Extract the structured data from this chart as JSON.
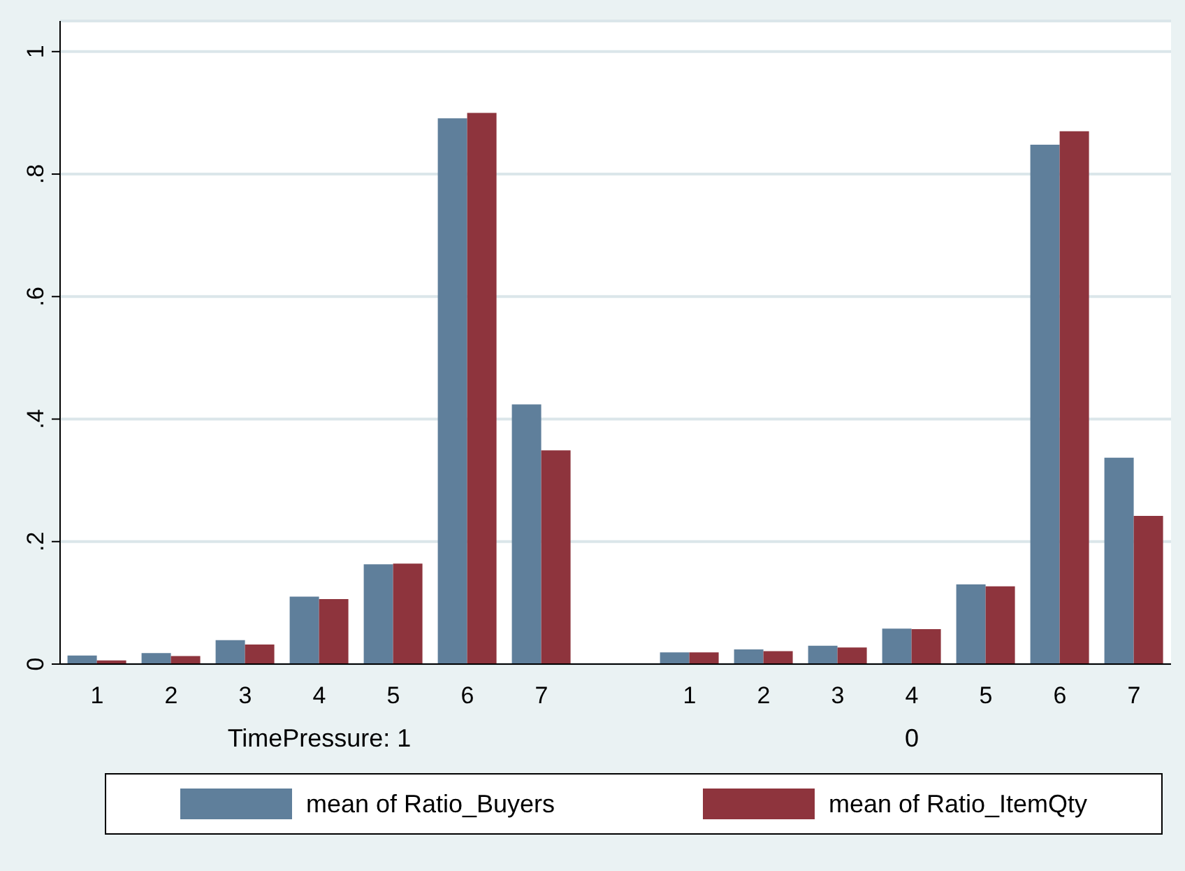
{
  "chart_data": {
    "type": "bar",
    "categories": [
      "1",
      "2",
      "3",
      "4",
      "5",
      "6",
      "7",
      null,
      "1",
      "2",
      "3",
      "4",
      "5",
      "6",
      "7"
    ],
    "series": [
      {
        "name": "mean of Ratio_Buyers",
        "color": "#5f7f9b",
        "values": [
          0.014,
          0.018,
          0.039,
          0.11,
          0.163,
          0.891,
          0.424,
          null,
          0.019,
          0.024,
          0.03,
          0.058,
          0.13,
          0.848,
          0.337
        ]
      },
      {
        "name": "mean of Ratio_ItemQty",
        "color": "#8e343d",
        "values": [
          0.006,
          0.013,
          0.032,
          0.106,
          0.164,
          0.9,
          0.349,
          null,
          0.019,
          0.021,
          0.027,
          0.057,
          0.127,
          0.87,
          0.242
        ]
      }
    ],
    "annotations": [
      "TimePressure: 1",
      "0"
    ],
    "ylim": [
      0,
      1.05
    ],
    "yticks": [
      0,
      {
        "value": 0.2,
        "label": ".2"
      },
      {
        "value": 0.4,
        "label": ".4"
      },
      {
        "value": 0.6,
        "label": ".6"
      },
      {
        "value": 0.8,
        "label": ".8"
      },
      1
    ],
    "grid": "y",
    "legend": "bottom"
  }
}
